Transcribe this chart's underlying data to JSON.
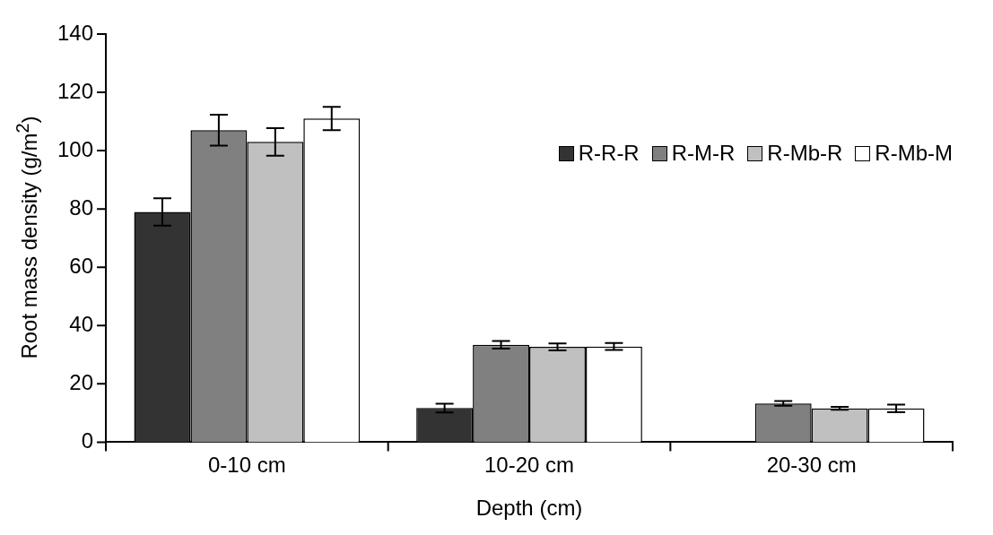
{
  "chart_data": {
    "type": "bar",
    "xlabel": "Depth (cm)",
    "ylabel": "Root mass density (g/m$^{2}$)",
    "categories": [
      "0-10 cm",
      "10-20 cm",
      "20-30 cm"
    ],
    "series": [
      {
        "name": "R-R-R",
        "color": "#333333",
        "values": [
          79,
          11.7,
          null
        ],
        "errors": [
          4.7,
          1.5,
          null
        ]
      },
      {
        "name": "R-M-R",
        "color": "#808080",
        "values": [
          107,
          33.4,
          13.3
        ],
        "errors": [
          5.3,
          1.3,
          0.8
        ]
      },
      {
        "name": "R-Mb-R",
        "color": "#c0c0c0",
        "values": [
          103,
          32.7,
          11.6
        ],
        "errors": [
          4.7,
          1.2,
          0.5
        ]
      },
      {
        "name": "R-Mb-M",
        "color": "#ffffff",
        "values": [
          111,
          32.8,
          11.6
        ],
        "errors": [
          4,
          1.2,
          1.3
        ]
      }
    ],
    "ylim": [
      0,
      140
    ],
    "yticks": [
      0,
      20,
      40,
      60,
      80,
      100,
      120,
      140
    ],
    "grid": false,
    "legend": "top right"
  }
}
